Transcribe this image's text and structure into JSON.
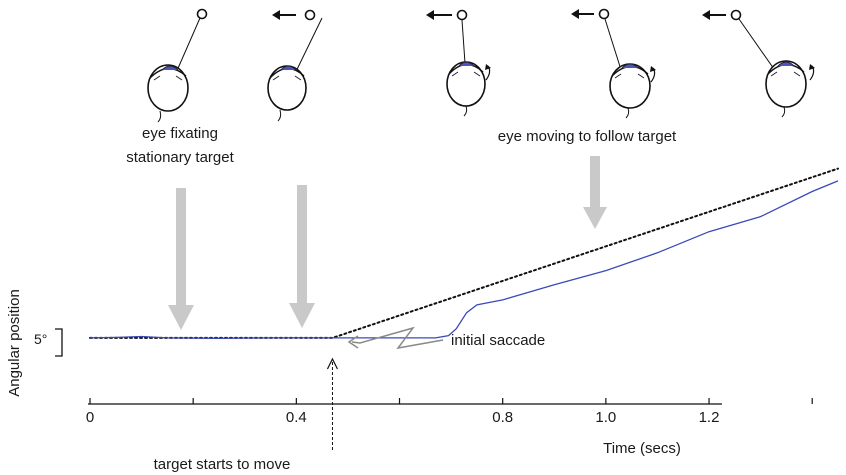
{
  "annotations": {
    "fixating_line1": "eye fixating",
    "fixating_line2": "stationary target",
    "following": "eye moving to follow target",
    "saccade": "initial saccade",
    "target_move": "target starts to move"
  },
  "scale_bar_label": "5°",
  "chart_data": {
    "type": "line",
    "xlabel": "Time (secs)",
    "ylabel": "Angular position",
    "xlim": [
      0,
      1.45
    ],
    "ylim": [
      -2,
      38
    ],
    "xticks": [
      0,
      0.4,
      0.8,
      1.0,
      1.2
    ],
    "xtick_labels": [
      "0",
      "0.4",
      "0.8",
      "1.0",
      "1.2"
    ],
    "target_onset": 0.47,
    "series": [
      {
        "style": "dotted",
        "color": "#111111",
        "x": [
          0,
          0.47,
          1.45
        ],
        "y": [
          0,
          0,
          37
        ]
      },
      {
        "style": "solid",
        "color": "#3a4ab8",
        "x": [
          0,
          0.05,
          0.1,
          0.15,
          0.25,
          0.35,
          0.47,
          0.6,
          0.67,
          0.695,
          0.71,
          0.73,
          0.75,
          0.8,
          0.9,
          1.0,
          1.1,
          1.2,
          1.3,
          1.4,
          1.45
        ],
        "y": [
          0,
          0.1,
          0.3,
          0.0,
          -0.1,
          0.0,
          0.0,
          0.0,
          0.0,
          0.5,
          2.0,
          5.5,
          7.2,
          8.3,
          11.6,
          14.7,
          18.6,
          23.2,
          26.5,
          32.0,
          34.3
        ]
      }
    ]
  },
  "icons": [
    "eye-diagram-fixating",
    "eye-diagram-target-moving",
    "eye-diagram-saccade",
    "eye-diagram-pursuit",
    "eye-diagram-pursuit-late"
  ]
}
